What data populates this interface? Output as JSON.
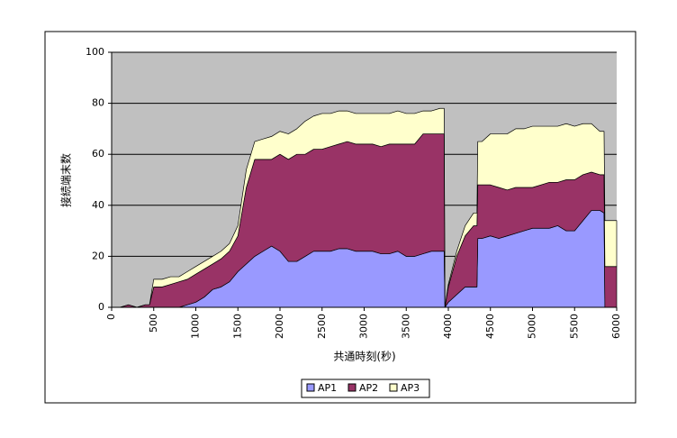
{
  "chart_data": {
    "type": "stacked_area",
    "x_label": "共通時刻(秒)",
    "y_label": "接続端末数",
    "x": [
      0,
      100,
      200,
      300,
      400,
      450,
      500,
      600,
      700,
      800,
      900,
      1000,
      1100,
      1200,
      1300,
      1400,
      1500,
      1600,
      1700,
      1800,
      1900,
      2000,
      2100,
      2200,
      2300,
      2400,
      2500,
      2600,
      2700,
      2800,
      2900,
      3000,
      3100,
      3200,
      3300,
      3400,
      3500,
      3600,
      3700,
      3800,
      3900,
      3950,
      3960,
      4000,
      4100,
      4200,
      4300,
      4340,
      4350,
      4400,
      4500,
      4600,
      4700,
      4800,
      4900,
      5000,
      5100,
      5200,
      5300,
      5400,
      5500,
      5600,
      5700,
      5800,
      5850,
      5860,
      5900,
      6000
    ],
    "series": [
      {
        "name": "AP1",
        "color": "#9999ff",
        "values": [
          0,
          0,
          0,
          0,
          0,
          0,
          0,
          0,
          0,
          0,
          1,
          2,
          4,
          7,
          8,
          10,
          14,
          17,
          20,
          22,
          24,
          22,
          18,
          18,
          20,
          22,
          22,
          22,
          23,
          23,
          22,
          22,
          22,
          21,
          21,
          22,
          20,
          20,
          21,
          22,
          22,
          22,
          0,
          2,
          5,
          8,
          8,
          8,
          27,
          27,
          28,
          27,
          28,
          29,
          30,
          31,
          31,
          31,
          32,
          30,
          30,
          34,
          38,
          38,
          37,
          0,
          0,
          0
        ]
      },
      {
        "name": "AP2",
        "color": "#993366",
        "values": [
          0,
          0,
          1,
          0,
          1,
          1,
          8,
          8,
          9,
          10,
          10,
          11,
          11,
          10,
          11,
          12,
          14,
          30,
          38,
          36,
          34,
          38,
          40,
          42,
          40,
          40,
          40,
          41,
          41,
          42,
          42,
          42,
          42,
          42,
          43,
          42,
          44,
          44,
          47,
          46,
          46,
          46,
          0,
          6,
          15,
          20,
          24,
          24,
          21,
          21,
          20,
          20,
          18,
          18,
          17,
          16,
          17,
          18,
          17,
          20,
          20,
          18,
          15,
          14,
          15,
          16,
          16,
          16
        ]
      },
      {
        "name": "AP3",
        "color": "#ffffcc",
        "values": [
          0,
          0,
          0,
          0,
          0,
          0,
          3,
          3,
          3,
          2,
          3,
          3,
          3,
          3,
          3,
          3,
          4,
          7,
          7,
          8,
          9,
          9,
          10,
          10,
          13,
          13,
          14,
          13,
          13,
          12,
          12,
          12,
          12,
          13,
          12,
          13,
          12,
          12,
          9,
          9,
          10,
          10,
          0,
          1,
          2,
          4,
          5,
          5,
          17,
          17,
          20,
          21,
          22,
          23,
          23,
          24,
          23,
          22,
          22,
          22,
          21,
          20,
          19,
          17,
          17,
          18,
          18,
          18
        ]
      }
    ],
    "xlim": [
      0,
      6000
    ],
    "xticks": [
      0,
      500,
      1000,
      1500,
      2000,
      2500,
      3000,
      3500,
      4000,
      4500,
      5000,
      5500,
      6000
    ],
    "ylim": [
      0,
      100
    ],
    "yticks": [
      0,
      20,
      40,
      60,
      80,
      100
    ],
    "grid": true,
    "plot_background": "#c0c0c0",
    "legend": "bottom"
  }
}
